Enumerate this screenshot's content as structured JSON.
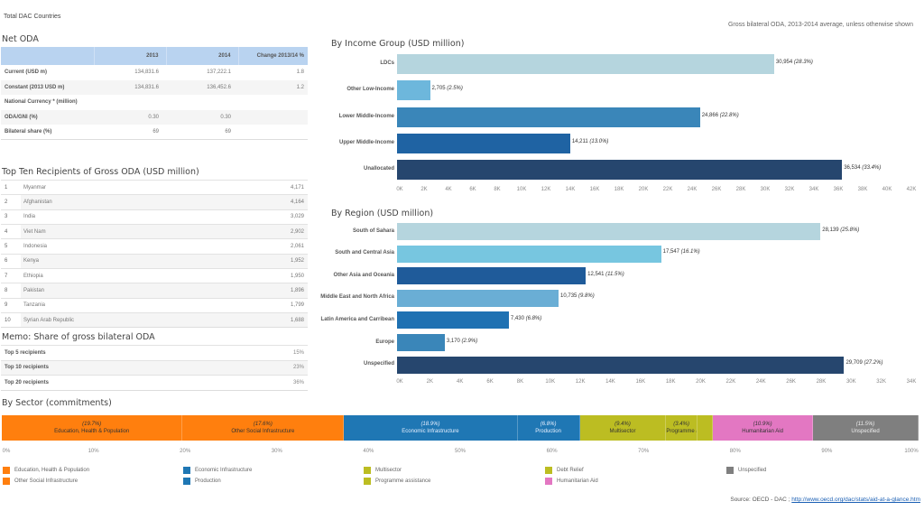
{
  "header": {
    "country": "Total DAC Countries",
    "note": "Gross bilateral ODA, 2013-2014 average, unless otherwise shown"
  },
  "net_oda": {
    "title": "Net ODA",
    "columns": [
      "",
      "2013",
      "2014",
      "Change 2013/14 %"
    ],
    "rows": [
      {
        "label": "Current (USD m)",
        "y2013": "134,831.6",
        "y2014": "137,222.1",
        "change": "1.8"
      },
      {
        "label": "Constant (2013 USD m)",
        "y2013": "134,831.6",
        "y2014": "136,452.6",
        "change": "1.2"
      },
      {
        "label": "National Currency * (million)",
        "y2013": "",
        "y2014": "",
        "change": ""
      },
      {
        "label": "ODA/GNI (%)",
        "y2013": "0.30",
        "y2014": "0.30",
        "change": ""
      },
      {
        "label": "Bilateral share (%)",
        "y2013": "69",
        "y2014": "69",
        "change": ""
      }
    ]
  },
  "top_recipients": {
    "title": "Top Ten Recipients of Gross ODA (USD million)",
    "rows": [
      {
        "rank": "1",
        "name": "Myanmar",
        "value": "4,171"
      },
      {
        "rank": "2",
        "name": "Afghanistan",
        "value": "4,164"
      },
      {
        "rank": "3",
        "name": "India",
        "value": "3,029"
      },
      {
        "rank": "4",
        "name": "Viet Nam",
        "value": "2,902"
      },
      {
        "rank": "5",
        "name": "Indonesia",
        "value": "2,061"
      },
      {
        "rank": "6",
        "name": "Kenya",
        "value": "1,952"
      },
      {
        "rank": "7",
        "name": "Ethiopia",
        "value": "1,950"
      },
      {
        "rank": "8",
        "name": "Pakistan",
        "value": "1,896"
      },
      {
        "rank": "9",
        "name": "Tanzania",
        "value": "1,799"
      },
      {
        "rank": "10",
        "name": "Syrian Arab Republic",
        "value": "1,688"
      }
    ]
  },
  "memo": {
    "title": "Memo: Share of gross bilateral ODA",
    "rows": [
      {
        "label": "Top 5 recipients",
        "value": "15%"
      },
      {
        "label": "Top 10 recipients",
        "value": "23%"
      },
      {
        "label": "Top 20 recipients",
        "value": "36%"
      }
    ]
  },
  "sector_title": "By Sector (commitments)",
  "source": {
    "label": "Source: OECD - DAC ;",
    "link_text": "http://www.oecd.org/dac/stats/aid-at-a-glance.htm"
  },
  "chart_data": [
    {
      "type": "bar",
      "orientation": "horizontal",
      "title": "By Income Group (USD million)",
      "categories": [
        "LDCs",
        "Other Low-Income",
        "Lower Middle-Income",
        "Upper Middle-Income",
        "Unallocated"
      ],
      "values": [
        30954,
        2705,
        24866,
        14211,
        36534
      ],
      "labels": [
        "30,954",
        "2,705",
        "24,866",
        "14,211",
        "36,534"
      ],
      "percents": [
        "(28.3%)",
        "(2.5%)",
        "(22.8%)",
        "(13.0%)",
        "(33.4%)"
      ],
      "colors": [
        "#b5d5de",
        "#6db7dc",
        "#3a86b9",
        "#1f63a3",
        "#26466e"
      ],
      "xlim": [
        0,
        42000
      ],
      "xticks": [
        "0K",
        "2K",
        "4K",
        "6K",
        "8K",
        "10K",
        "12K",
        "14K",
        "16K",
        "18K",
        "20K",
        "22K",
        "24K",
        "26K",
        "28K",
        "30K",
        "32K",
        "34K",
        "36K",
        "38K",
        "40K",
        "42K"
      ]
    },
    {
      "type": "bar",
      "orientation": "horizontal",
      "title": "By Region (USD million)",
      "categories": [
        "South of Sahara",
        "South and Central Asia",
        "Other Asia and Oceania",
        "Middle East and North Africa",
        "Latin America and Carribean",
        "Europe",
        "Unspecified"
      ],
      "values": [
        28139,
        17547,
        12541,
        10735,
        7430,
        3170,
        29709
      ],
      "labels": [
        "28,139",
        "17,547",
        "12,541",
        "10,735",
        "7,430",
        "3,170",
        "29,709"
      ],
      "percents": [
        "(25.8%)",
        "(16.1%)",
        "(11.5%)",
        "(9.8%)",
        "(6.8%)",
        "(2.9%)",
        "(27.2%)"
      ],
      "colors": [
        "#b5d5de",
        "#77c6e0",
        "#1f5b9a",
        "#6aaed5",
        "#1f71b2",
        "#3a86b9",
        "#26466e"
      ],
      "xlim": [
        0,
        34000
      ],
      "xticks": [
        "0K",
        "2K",
        "4K",
        "6K",
        "8K",
        "10K",
        "12K",
        "14K",
        "16K",
        "18K",
        "20K",
        "22K",
        "24K",
        "26K",
        "28K",
        "30K",
        "32K",
        "34K"
      ]
    },
    {
      "type": "bar",
      "orientation": "stacked-horizontal",
      "title": "By Sector (commitments)",
      "segments": [
        {
          "name": "Education, Health & Population",
          "value": 19.7,
          "pct": "(19.7%)",
          "color": "#ff7f0e",
          "text": "#333",
          "show": true
        },
        {
          "name": "Other Social Infrastructure",
          "value": 17.6,
          "pct": "(17.6%)",
          "color": "#ff7f0e",
          "text": "#333",
          "show": true
        },
        {
          "name": "Economic Infrastructure",
          "value": 18.9,
          "pct": "(18.9%)",
          "color": "#1f77b4",
          "text": "#e8f0ff",
          "show": true
        },
        {
          "name": "Production",
          "value": 6.8,
          "pct": "(6.8%)",
          "color": "#1f77b4",
          "text": "#e8f0ff",
          "show": true
        },
        {
          "name": "Multisector",
          "value": 9.4,
          "pct": "(9.4%)",
          "color": "#bcbd22",
          "text": "#333",
          "show": true
        },
        {
          "name": "Programme assistance",
          "value": 3.4,
          "pct": "(3.4%)",
          "color": "#bcbd22",
          "text": "#333",
          "show": true
        },
        {
          "name": "Debt Relief",
          "value": 1.7,
          "pct": "",
          "color": "#bcbd22",
          "text": "#333",
          "show": false
        },
        {
          "name": "Humanitarian Aid",
          "value": 10.9,
          "pct": "(10.9%)",
          "color": "#e377c2",
          "text": "#333",
          "show": true
        },
        {
          "name": "Unspecified",
          "value": 11.5,
          "pct": "(11.5%)",
          "color": "#7f7f7f",
          "text": "#eee",
          "show": true
        }
      ],
      "xlim": [
        0,
        100
      ],
      "xticks": [
        "0%",
        "10%",
        "20%",
        "30%",
        "40%",
        "50%",
        "60%",
        "70%",
        "80%",
        "90%",
        "100%"
      ],
      "legend": [
        {
          "name": "Education, Health & Population",
          "color": "#ff7f0e"
        },
        {
          "name": "Other Social Infrastructure",
          "color": "#ff7f0e"
        },
        {
          "name": "Economic Infrastructure",
          "color": "#1f77b4"
        },
        {
          "name": "Production",
          "color": "#1f77b4"
        },
        {
          "name": "Multisector",
          "color": "#bcbd22"
        },
        {
          "name": "Programme assistance",
          "color": "#bcbd22"
        },
        {
          "name": "Debt Relief",
          "color": "#bcbd22"
        },
        {
          "name": "Humanitarian Aid",
          "color": "#e377c2"
        },
        {
          "name": "Unspecified",
          "color": "#7f7f7f"
        }
      ],
      "legend_position": "bottom"
    }
  ]
}
